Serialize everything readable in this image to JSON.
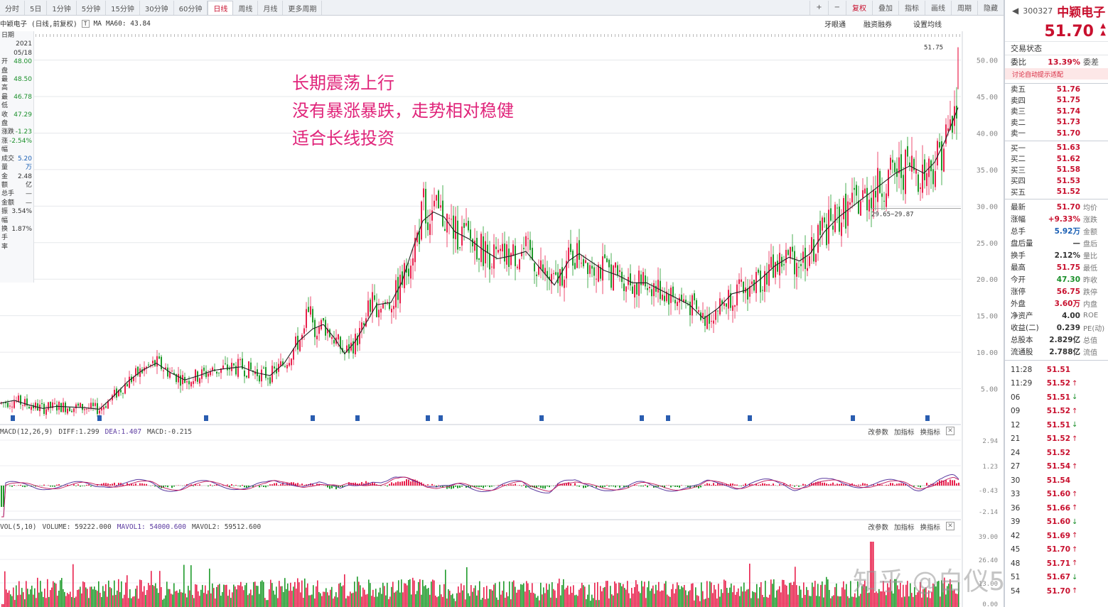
{
  "toolbar": {
    "tabs": [
      "分时",
      "5日",
      "1分钟",
      "5分钟",
      "15分钟",
      "30分钟",
      "60分钟",
      "日线",
      "周线",
      "月线",
      "更多周期"
    ],
    "active_tab": "日线",
    "right_buttons": [
      "+",
      "−",
      "复权",
      "叠加",
      "指标",
      "画线",
      "周期",
      "隐藏"
    ]
  },
  "info_row": {
    "stock_label": "中颖电子",
    "period": "(日线,前复权)",
    "ma_label": "MA",
    "ma_value": "MA60: 43.84",
    "right_links": [
      "牙眼通",
      "融资融券",
      "设置均线"
    ]
  },
  "left_panel": {
    "rows": [
      {
        "label": "日期",
        "value": ""
      },
      {
        "label": "",
        "value": "2021"
      },
      {
        "label": "",
        "value": "05/18"
      },
      {
        "label": "开盘",
        "value": "48.00"
      },
      {
        "label": "最高",
        "value": "48.50"
      },
      {
        "label": "最低",
        "value": "46.78"
      },
      {
        "label": "收盘",
        "value": "47.29"
      },
      {
        "label": "涨跌",
        "value": "-1.23"
      },
      {
        "label": "涨幅",
        "value": "-2.54%"
      },
      {
        "label": "成交量",
        "value": "5.20万"
      },
      {
        "label": "金额",
        "value": "2.48亿"
      },
      {
        "label": "总手",
        "value": "—"
      },
      {
        "label": "金额",
        "value": "—"
      },
      {
        "label": "振幅",
        "value": "3.54%"
      },
      {
        "label": "换手率",
        "value": "1.87%"
      }
    ]
  },
  "annotation": {
    "line1": "长期震荡上行",
    "line2": "没有暴涨暴跌，走势相对稳健",
    "line3": "适合长线投资"
  },
  "price_labels": {
    "high_label": "51.75",
    "low_label": "29.65~29.87"
  },
  "macd_header": {
    "name": "MACD(12,26,9)",
    "diff": "DIFF:1.299",
    "dea": "DEA:1.407",
    "macd": "MACD:-0.215",
    "links": [
      "改参数",
      "加指标",
      "换指标"
    ]
  },
  "vol_header": {
    "name": "VOL(5,10)",
    "volume": "VOLUME: 59222.000",
    "mavol1": "MAVOL1: 54000.600",
    "mavol2": "MAVOL2: 59512.600",
    "links": [
      "改参数",
      "加指标",
      "换指标"
    ]
  },
  "watermark": "知乎 @白仪52",
  "right_panel": {
    "code": "300327",
    "name": "中颖电子",
    "price": "51.70",
    "status_label": "交易状态",
    "weibi_label": "委比",
    "weibi_value": "13.39%",
    "weicha_label": "委差",
    "link": "讨论自动提示适配",
    "asks": [
      {
        "label": "卖五",
        "price": "51.76"
      },
      {
        "label": "卖四",
        "price": "51.75"
      },
      {
        "label": "卖三",
        "price": "51.74"
      },
      {
        "label": "卖二",
        "price": "51.73"
      },
      {
        "label": "卖一",
        "price": "51.70"
      }
    ],
    "bids": [
      {
        "label": "买一",
        "price": "51.63"
      },
      {
        "label": "买二",
        "price": "51.62"
      },
      {
        "label": "买三",
        "price": "51.58"
      },
      {
        "label": "买四",
        "price": "51.53"
      },
      {
        "label": "买五",
        "price": "51.52"
      }
    ],
    "stats": [
      {
        "label": "最新",
        "value": "51.70",
        "cls": "red",
        "right": "均价"
      },
      {
        "label": "涨幅",
        "value": "+9.33%",
        "cls": "red",
        "right": "涨跌"
      },
      {
        "label": "总手",
        "value": "5.92万",
        "cls": "blue",
        "right": "金额"
      },
      {
        "label": "盘后量",
        "value": "—",
        "cls": "",
        "right": "盘后"
      },
      {
        "label": "换手",
        "value": "2.12%",
        "cls": "",
        "right": "量比"
      },
      {
        "label": "最高",
        "value": "51.75",
        "cls": "red",
        "right": "最低"
      },
      {
        "label": "今开",
        "value": "47.30",
        "cls": "green",
        "right": "昨收"
      },
      {
        "label": "涨停",
        "value": "56.75",
        "cls": "red",
        "right": "跌停"
      },
      {
        "label": "外盘",
        "value": "3.60万",
        "cls": "red",
        "right": "内盘"
      },
      {
        "label": "净资产",
        "value": "4.00",
        "cls": "",
        "right": "ROE"
      },
      {
        "label": "收益(二)",
        "value": "0.239",
        "cls": "",
        "right": "PE(动)"
      },
      {
        "label": "总股本",
        "value": "2.829亿",
        "cls": "",
        "right": "总值"
      },
      {
        "label": "流通股",
        "value": "2.788亿",
        "cls": "",
        "right": "流值"
      }
    ],
    "ticks": [
      {
        "time": "11:28",
        "price": "51.51",
        "arrow": "",
        "cls": "red"
      },
      {
        "time": "11:29",
        "price": "51.52",
        "arrow": "↑",
        "cls": "red"
      },
      {
        "time": "06",
        "price": "51.51",
        "arrow": "↓",
        "cls": "red"
      },
      {
        "time": "09",
        "price": "51.52",
        "arrow": "↑",
        "cls": "red"
      },
      {
        "time": "12",
        "price": "51.51",
        "arrow": "↓",
        "cls": "red"
      },
      {
        "time": "21",
        "price": "51.52",
        "arrow": "↑",
        "cls": "red"
      },
      {
        "time": "24",
        "price": "51.52",
        "arrow": "",
        "cls": "red"
      },
      {
        "time": "27",
        "price": "51.54",
        "arrow": "↑",
        "cls": "red"
      },
      {
        "time": "30",
        "price": "51.54",
        "arrow": "",
        "cls": "red"
      },
      {
        "time": "33",
        "price": "51.60",
        "arrow": "↑",
        "cls": "red"
      },
      {
        "time": "36",
        "price": "51.66",
        "arrow": "↑",
        "cls": "red"
      },
      {
        "time": "39",
        "price": "51.60",
        "arrow": "↓",
        "cls": "red"
      },
      {
        "time": "42",
        "price": "51.69",
        "arrow": "↑",
        "cls": "red"
      },
      {
        "time": "45",
        "price": "51.70",
        "arrow": "↑",
        "cls": "red"
      },
      {
        "time": "48",
        "price": "51.71",
        "arrow": "↑",
        "cls": "red"
      },
      {
        "time": "51",
        "price": "51.67",
        "arrow": "↓",
        "cls": "red"
      },
      {
        "time": "54",
        "price": "51.70",
        "arrow": "↑",
        "cls": "red"
      }
    ]
  },
  "colors": {
    "up": "#e8214d",
    "down": "#1f9b2b",
    "ma": "#222222",
    "diff": "#5b3aa0",
    "dea": "#c2185b",
    "annotation": "#e0247a"
  },
  "chart_data": [
    {
      "type": "line",
      "title": "",
      "xlabel": "",
      "ylabel": "",
      "ylim": [
        0,
        52
      ],
      "y_ticks": [
        "50.00",
        "45.00",
        "40.00",
        "35.00",
        "30.00",
        "25.00",
        "20.00",
        "15.00",
        "10.00",
        "5.00"
      ],
      "series": [
        {
          "name": "",
          "points": [
            [
              0,
              3.0
            ],
            [
              20,
              3.4
            ],
            [
              40,
              2.8
            ],
            [
              60,
              2.3
            ],
            [
              80,
              2.6
            ],
            [
              100,
              2.5
            ],
            [
              120,
              2.4
            ],
            [
              140,
              2.2
            ],
            [
              160,
              4.0
            ],
            [
              180,
              6.0
            ],
            [
              200,
              7.5
            ],
            [
              220,
              8.5
            ],
            [
              240,
              7.2
            ],
            [
              260,
              6.2
            ],
            [
              280,
              6.8
            ],
            [
              300,
              7.5
            ],
            [
              320,
              7.8
            ],
            [
              340,
              8.0
            ],
            [
              360,
              7.2
            ],
            [
              380,
              6.8
            ],
            [
              400,
              8.5
            ],
            [
              420,
              11.5
            ],
            [
              440,
              13.2
            ],
            [
              455,
              13.8
            ],
            [
              470,
              12.0
            ],
            [
              485,
              9.8
            ],
            [
              500,
              11.5
            ],
            [
              515,
              14.0
            ],
            [
              530,
              16.5
            ],
            [
              550,
              16.8
            ],
            [
              565,
              19.5
            ],
            [
              580,
              24.0
            ],
            [
              595,
              28.0
            ],
            [
              610,
              29.2
            ],
            [
              625,
              28.5
            ],
            [
              640,
              26.5
            ],
            [
              660,
              25.5
            ],
            [
              680,
              24.0
            ],
            [
              700,
              22.8
            ],
            [
              720,
              23.2
            ],
            [
              740,
              23.8
            ],
            [
              760,
              21.5
            ],
            [
              780,
              19.2
            ],
            [
              800,
              22.5
            ],
            [
              815,
              23.5
            ],
            [
              830,
              22.5
            ],
            [
              850,
              21.2
            ],
            [
              870,
              20.5
            ],
            [
              890,
              19.5
            ],
            [
              910,
              19.5
            ],
            [
              930,
              18.5
            ],
            [
              950,
              17.5
            ],
            [
              970,
              16.5
            ],
            [
              990,
              14.6
            ],
            [
              1010,
              16.0
            ],
            [
              1030,
              18.0
            ],
            [
              1050,
              18.5
            ],
            [
              1070,
              20.0
            ],
            [
              1090,
              21.8
            ],
            [
              1110,
              23.0
            ],
            [
              1125,
              22.5
            ],
            [
              1140,
              23.5
            ],
            [
              1160,
              26.5
            ],
            [
              1180,
              28.5
            ],
            [
              1200,
              30.0
            ],
            [
              1220,
              31.5
            ],
            [
              1240,
              33.0
            ],
            [
              1260,
              34.5
            ],
            [
              1280,
              35.5
            ],
            [
              1300,
              34.5
            ],
            [
              1315,
              36.0
            ],
            [
              1330,
              39.0
            ],
            [
              1348,
              43.5
            ]
          ]
        }
      ]
    },
    {
      "type": "bar",
      "title": "",
      "xlabel": "",
      "ylabel": "",
      "y_ticks": [
        "2.94",
        "1.23",
        "-0.43",
        "-2.14"
      ]
    },
    {
      "type": "bar",
      "title": "",
      "xlabel": "",
      "ylabel": "",
      "y_ticks": [
        "39.00",
        "26.40",
        "13.00",
        "0.00"
      ]
    }
  ]
}
